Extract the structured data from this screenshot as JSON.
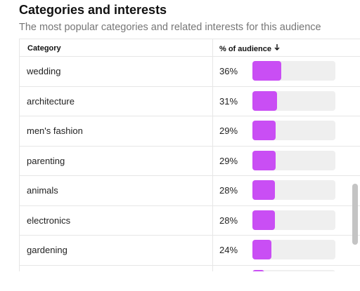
{
  "header": {
    "title": "Categories and interests",
    "subtitle": "The most popular categories and related interests for this audience"
  },
  "table": {
    "columns": {
      "category": "Category",
      "percent": "% of audience",
      "sort_icon": "arrow-down-icon"
    },
    "rows": [
      {
        "category": "wedding",
        "percent_label": "36%",
        "percent": 36
      },
      {
        "category": "architecture",
        "percent_label": "31%",
        "percent": 31
      },
      {
        "category": "men's fashion",
        "percent_label": "29%",
        "percent": 29
      },
      {
        "category": "parenting",
        "percent_label": "29%",
        "percent": 29
      },
      {
        "category": "animals",
        "percent_label": "28%",
        "percent": 28
      },
      {
        "category": "electronics",
        "percent_label": "28%",
        "percent": 28
      },
      {
        "category": "gardening",
        "percent_label": "24%",
        "percent": 24
      },
      {
        "category": "",
        "percent_label": "",
        "percent": 15
      }
    ]
  },
  "colors": {
    "bar_fill": "#c94ef4",
    "bar_track": "#efefef"
  }
}
